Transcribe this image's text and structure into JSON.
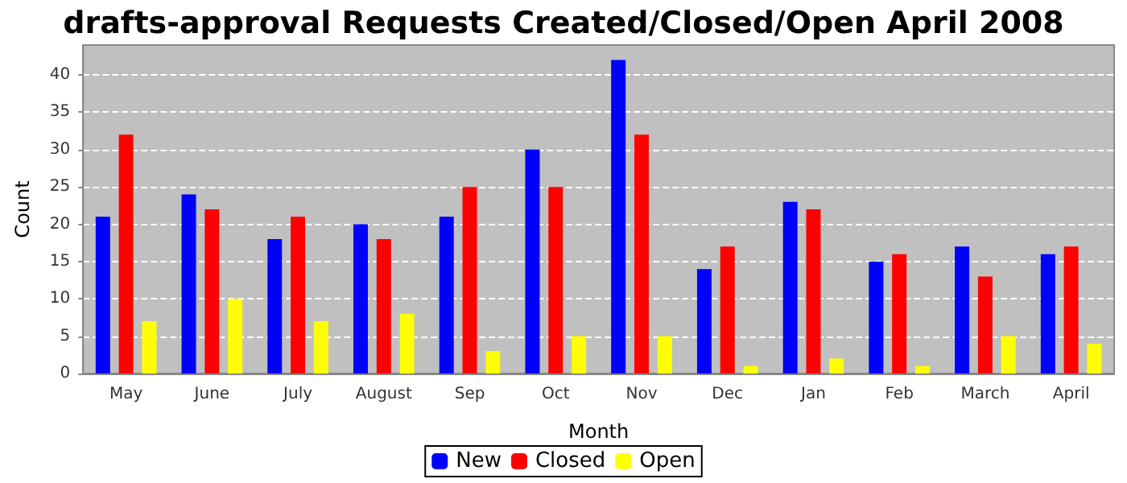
{
  "chart_data": {
    "type": "bar",
    "title": "drafts-approval Requests Created/Closed/Open April 2008",
    "xlabel": "Month",
    "ylabel": "Count",
    "categories": [
      "May",
      "June",
      "July",
      "August",
      "Sep",
      "Oct",
      "Nov",
      "Dec",
      "Jan",
      "Feb",
      "March",
      "April"
    ],
    "series": [
      {
        "name": "New",
        "color": "#0000ff",
        "values": [
          21,
          24,
          18,
          20,
          21,
          30,
          42,
          14,
          23,
          15,
          17,
          16
        ]
      },
      {
        "name": "Closed",
        "color": "#ff0000",
        "values": [
          32,
          22,
          21,
          18,
          25,
          25,
          32,
          17,
          22,
          16,
          13,
          17
        ]
      },
      {
        "name": "Open",
        "color": "#ffff00",
        "values": [
          7,
          10,
          7,
          8,
          3,
          5,
          5,
          1,
          2,
          1,
          5,
          4
        ]
      }
    ],
    "ylim": [
      0,
      44
    ],
    "yticks": [
      0,
      5,
      10,
      15,
      20,
      25,
      30,
      35,
      40
    ],
    "grid": "y",
    "legend": "bottom"
  }
}
